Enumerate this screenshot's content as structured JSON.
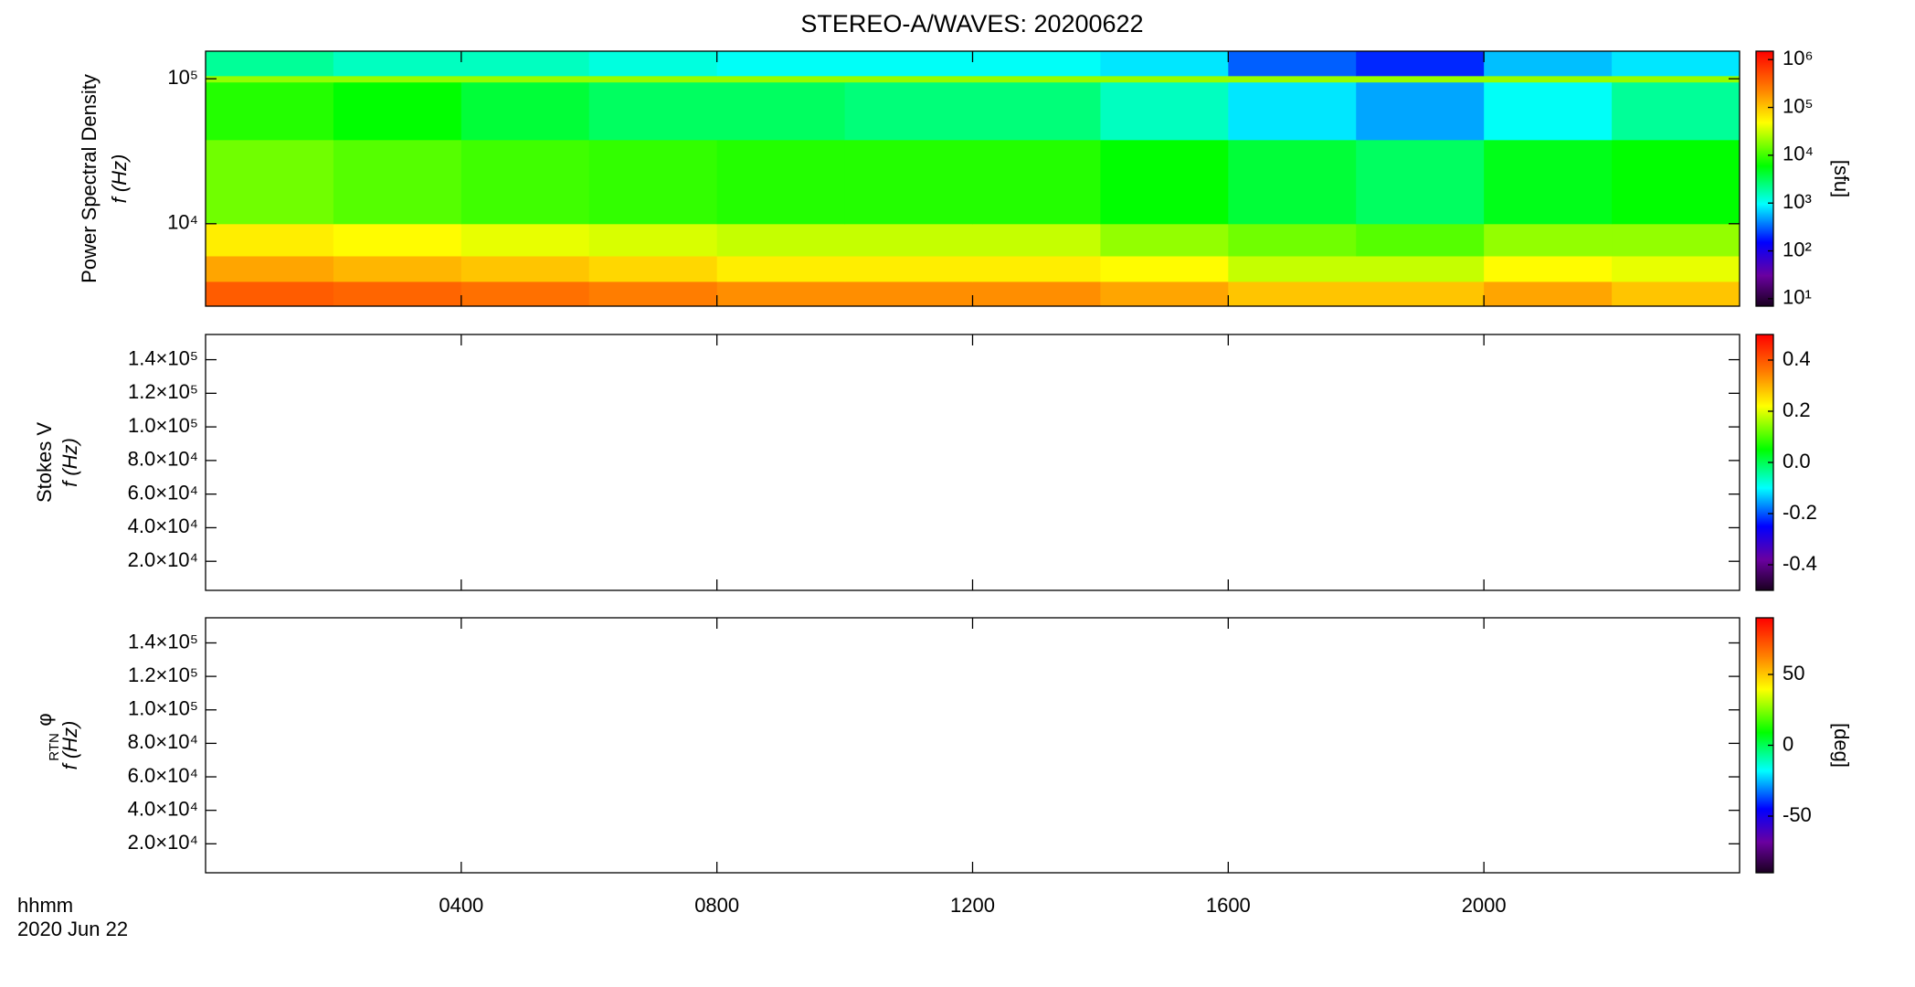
{
  "title": "STEREO-A/WAVES: 20200622",
  "xlim": [
    0,
    24
  ],
  "xticks": [
    {
      "value": 4,
      "label": "0400"
    },
    {
      "value": 8,
      "label": "0800"
    },
    {
      "value": 12,
      "label": "1200"
    },
    {
      "value": 16,
      "label": "1600"
    },
    {
      "value": 20,
      "label": "2000"
    }
  ],
  "xlabel": "hhmm",
  "date": "2020 Jun 22",
  "chart_data": [
    {
      "type": "heatmap",
      "ylabel": "Power Spectral Density",
      "ylabel2": "f (Hz)",
      "ylog": true,
      "ylim": [
        2700,
        155000
      ],
      "yticks": [
        {
          "value": 10000,
          "label": "10⁴"
        },
        {
          "value": 100000,
          "label": "10⁵"
        }
      ],
      "zlog": true,
      "zlim": [
        7,
        1500000
      ],
      "zticks": [
        {
          "value": 10,
          "label": "10¹"
        },
        {
          "value": 100,
          "label": "10²"
        },
        {
          "value": 1000,
          "label": "10³"
        },
        {
          "value": 10000,
          "label": "10⁴"
        },
        {
          "value": 100000,
          "label": "10⁵"
        },
        {
          "value": 1000000,
          "label": "10⁶"
        }
      ],
      "zlabel": "[sfu]",
      "colormap": "rainbow",
      "xbins": [
        0,
        2,
        4,
        6,
        8,
        10,
        12,
        14,
        16,
        18,
        20,
        22,
        24
      ],
      "ybins": [
        2700,
        4000,
        6000,
        10000,
        38000,
        95000,
        105000,
        155000
      ],
      "values": [
        [
          400000,
          350000,
          300000,
          250000,
          200000,
          200000,
          200000,
          150000,
          100000,
          100000,
          150000,
          100000
        ],
        [
          150000,
          120000,
          100000,
          80000,
          60000,
          60000,
          60000,
          50000,
          30000,
          30000,
          50000,
          40000
        ],
        [
          60000,
          50000,
          40000,
          35000,
          30000,
          30000,
          30000,
          20000,
          15000,
          12000,
          20000,
          20000
        ],
        [
          15000,
          12000,
          10000,
          9000,
          8000,
          8000,
          8000,
          6000,
          4000,
          3000,
          5000,
          6000
        ],
        [
          8000,
          6000,
          4000,
          3000,
          3000,
          2500,
          2500,
          1500,
          800,
          500,
          1000,
          2000
        ],
        [
          20000,
          20000,
          20000,
          20000,
          20000,
          20000,
          20000,
          20000,
          20000,
          20000,
          20000,
          20000
        ],
        [
          2000,
          1500,
          1500,
          1200,
          1000,
          1000,
          1000,
          800,
          300,
          200,
          600,
          800
        ]
      ]
    },
    {
      "type": "heatmap",
      "ylabel": "Stokes V",
      "ylabel2": "f (Hz)",
      "ylog": false,
      "ylim": [
        2700,
        155000
      ],
      "yticks": [
        {
          "value": 20000,
          "label": "2.0×10⁴"
        },
        {
          "value": 40000,
          "label": "4.0×10⁴"
        },
        {
          "value": 60000,
          "label": "6.0×10⁴"
        },
        {
          "value": 80000,
          "label": "8.0×10⁴"
        },
        {
          "value": 100000,
          "label": "1.0×10⁵"
        },
        {
          "value": 120000,
          "label": "1.2×10⁵"
        },
        {
          "value": 140000,
          "label": "1.4×10⁵"
        }
      ],
      "zlog": false,
      "zlim": [
        -0.5,
        0.5
      ],
      "zticks": [
        -0.4,
        -0.2,
        {
          "value": 0,
          "label": "0.0"
        },
        0.2,
        0.4
      ],
      "colormap": "rainbow"
    },
    {
      "type": "heatmap",
      "ylabel": "φ",
      "ylabel_sub": "RTN",
      "ylabel2": "f (Hz)",
      "ylog": false,
      "ylim": [
        2700,
        155000
      ],
      "yticks": [
        {
          "value": 20000,
          "label": "2.0×10⁴"
        },
        {
          "value": 40000,
          "label": "4.0×10⁴"
        },
        {
          "value": 60000,
          "label": "6.0×10⁴"
        },
        {
          "value": 80000,
          "label": "8.0×10⁴"
        },
        {
          "value": 100000,
          "label": "1.0×10⁵"
        },
        {
          "value": 120000,
          "label": "1.2×10⁵"
        },
        {
          "value": 140000,
          "label": "1.4×10⁵"
        }
      ],
      "zlog": false,
      "zlim": [
        -90,
        90
      ],
      "zticks": [
        -50,
        0,
        50
      ],
      "zlabel": "[deg]",
      "colormap": "rainbow"
    }
  ]
}
